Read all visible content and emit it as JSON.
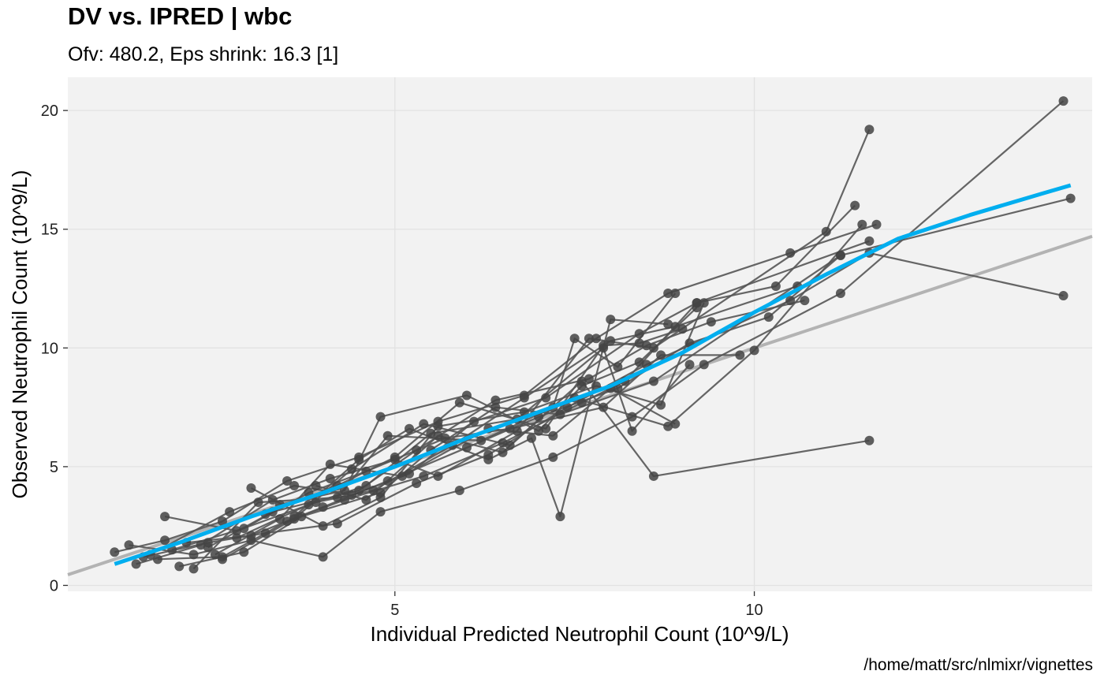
{
  "colors": {
    "panel_background": "#f2f2f2",
    "grid": "#e2e2e2",
    "points": "#444444",
    "subject_lines": "#555555",
    "smooth_line": "#00aeef",
    "identity_line": "#b3b3b3"
  },
  "chart_data": {
    "type": "scatter",
    "title": "DV vs. IPRED | wbc",
    "subtitle": "Ofv: 480.2, Eps shrink: 16.3 [1]",
    "xlabel": "Individual Predicted Neutrophil Count (10^9/L)",
    "ylabel": "Observed Neutrophil Count (10^9/L)",
    "caption": "/home/matt/src/nlmixr/vignettes",
    "xlim": [
      0.45,
      14.7
    ],
    "ylim": [
      -0.25,
      21.4
    ],
    "x_ticks": [
      5,
      10
    ],
    "y_ticks": [
      0,
      5,
      10,
      15,
      20
    ],
    "grid": true,
    "legend": "none",
    "identity_line": {
      "from": [
        0.45,
        0.45
      ],
      "to": [
        14.7,
        14.7
      ]
    },
    "smooth_line": {
      "x": [
        1.1,
        2.0,
        3.0,
        4.0,
        5.0,
        6.0,
        7.0,
        8.0,
        9.0,
        10.0,
        11.0,
        12.0,
        13.0,
        14.0,
        14.4
      ],
      "y": [
        0.9,
        1.8,
        2.9,
        3.9,
        5.0,
        6.2,
        7.3,
        8.4,
        9.8,
        11.5,
        13.1,
        14.6,
        15.6,
        16.5,
        16.85
      ]
    },
    "series": [
      {
        "x": [
          1.1,
          1.8,
          2.6,
          3.5,
          4.5,
          5.6,
          6.8,
          7.8,
          8.8,
          10.5,
          11.7
        ],
        "y": [
          1.4,
          1.9,
          2.7,
          4.4,
          5.4,
          6.9,
          8.0,
          10.4,
          12.3,
          14.0,
          15.2
        ]
      },
      {
        "x": [
          1.3,
          2.2,
          3.0,
          4.0,
          4.8,
          5.9,
          7.2,
          8.3,
          9.3,
          11.2,
          14.3
        ],
        "y": [
          1.7,
          1.3,
          1.9,
          1.2,
          3.1,
          4.0,
          5.4,
          7.1,
          9.3,
          12.3,
          20.4
        ]
      },
      {
        "x": [
          1.5,
          2.4,
          3.2,
          4.2,
          5.3,
          6.3,
          7.4,
          8.5,
          10.5,
          11.6,
          14.3
        ],
        "y": [
          1.2,
          1.8,
          2.2,
          2.6,
          4.3,
          5.5,
          7.5,
          9.3,
          12.0,
          14.0,
          12.2
        ]
      },
      {
        "x": [
          1.7,
          2.6,
          3.5,
          4.3,
          5.4,
          6.5,
          7.6,
          8.2,
          9.2,
          10.3,
          11.4
        ],
        "y": [
          1.1,
          1.2,
          2.7,
          3.6,
          4.6,
          6.0,
          7.7,
          8.6,
          11.9,
          12.6,
          16.0
        ]
      },
      {
        "x": [
          1.9,
          2.9,
          3.8,
          4.6,
          5.7,
          6.6,
          7.9,
          8.7,
          9.8
        ],
        "y": [
          1.5,
          2.4,
          3.9,
          4.8,
          6.2,
          6.6,
          7.5,
          9.7,
          9.7
        ]
      },
      {
        "x": [
          2.1,
          3.0,
          4.0,
          4.9,
          6.0,
          7.0,
          8.1,
          9.1,
          10.2,
          11.2
        ],
        "y": [
          1.8,
          2.1,
          3.3,
          4.4,
          5.8,
          7.1,
          8.3,
          10.2,
          11.3,
          13.9
        ]
      },
      {
        "x": [
          1.6,
          2.7,
          3.6,
          4.4,
          5.2,
          6.1,
          7.1,
          8.4,
          9.2,
          11.6
        ],
        "y": [
          1.3,
          3.1,
          4.2,
          3.8,
          4.7,
          6.9,
          7.9,
          10.6,
          11.9,
          14.5
        ]
      },
      {
        "x": [
          1.4,
          2.3,
          3.3,
          4.1,
          5.0,
          5.6,
          6.7,
          7.7,
          8.6,
          11.0,
          11.6
        ],
        "y": [
          0.9,
          1.7,
          3.6,
          4.5,
          5.3,
          4.6,
          6.5,
          10.4,
          10.0,
          14.9,
          19.2
        ]
      },
      {
        "x": [
          1.8,
          2.8,
          3.9,
          4.7,
          5.8,
          6.8,
          8.0,
          8.9,
          10.6
        ],
        "y": [
          2.9,
          2.3,
          3.5,
          4.0,
          5.9,
          7.9,
          10.3,
          10.9,
          12.6
        ]
      },
      {
        "x": [
          2.0,
          2.9,
          3.7,
          4.8,
          5.5,
          6.4,
          7.3,
          8.6,
          11.2,
          14.4
        ],
        "y": [
          0.8,
          1.4,
          2.9,
          3.9,
          5.7,
          7.5,
          7.2,
          8.6,
          13.9,
          16.3
        ]
      },
      {
        "x": [
          2.2,
          3.1,
          4.2,
          4.9,
          6.2,
          7.5,
          8.8,
          10.0,
          11.5
        ],
        "y": [
          0.7,
          3.5,
          3.7,
          6.3,
          6.1,
          7.9,
          6.7,
          9.9,
          15.2
        ]
      },
      {
        "x": [
          2.5,
          3.4,
          4.1,
          5.1,
          6.3,
          7.2,
          8.0,
          8.9
        ],
        "y": [
          1.3,
          2.8,
          5.1,
          4.6,
          6.6,
          6.3,
          8.3,
          6.8
        ]
      },
      {
        "x": [
          2.4,
          3.3,
          4.5,
          5.3,
          6.4,
          7.7,
          8.5,
          9.4,
          10.7
        ],
        "y": [
          1.6,
          3.1,
          4.0,
          5.7,
          7.8,
          8.7,
          10.1,
          11.1,
          12.0
        ]
      },
      {
        "x": [
          2.6,
          3.6,
          4.4,
          5.4,
          6.6,
          7.6,
          8.6,
          11.6
        ],
        "y": [
          1.1,
          2.8,
          4.9,
          6.8,
          5.9,
          8.6,
          4.6,
          6.1
        ]
      },
      {
        "x": [
          2.8,
          3.8,
          4.6,
          5.5,
          6.7,
          7.9,
          8.3,
          9.1
        ],
        "y": [
          2.0,
          3.4,
          4.2,
          6.4,
          7.0,
          10.0,
          6.5,
          9.3
        ]
      },
      {
        "x": [
          3.0,
          4.0,
          4.8,
          5.6,
          6.8,
          7.8,
          8.7,
          9.3
        ],
        "y": [
          4.1,
          2.5,
          3.7,
          6.7,
          7.3,
          8.4,
          7.6,
          11.9
        ]
      },
      {
        "x": [
          3.2,
          4.2,
          5.0,
          5.9,
          7.1,
          7.9,
          8.4,
          9.0
        ],
        "y": [
          3.0,
          4.2,
          5.4,
          7.7,
          6.6,
          10.1,
          10.2,
          10.8
        ]
      },
      {
        "x": [
          3.4,
          4.3,
          4.8,
          6.0,
          7.0,
          7.6,
          8.4,
          9.2
        ],
        "y": [
          3.4,
          4.0,
          7.1,
          8.0,
          6.5,
          8.4,
          9.4,
          11.7
        ]
      },
      {
        "x": [
          3.6,
          4.5,
          5.2,
          6.3,
          6.9,
          7.3,
          8.0,
          8.8
        ],
        "y": [
          2.9,
          5.3,
          6.6,
          5.3,
          6.2,
          2.9,
          11.2,
          11.0
        ]
      },
      {
        "x": [
          3.9,
          4.6,
          5.6,
          6.5,
          7.2,
          7.5,
          8.1,
          8.9
        ],
        "y": [
          4.2,
          3.6,
          6.3,
          5.6,
          7.5,
          10.4,
          9.2,
          12.3
        ]
      }
    ]
  }
}
